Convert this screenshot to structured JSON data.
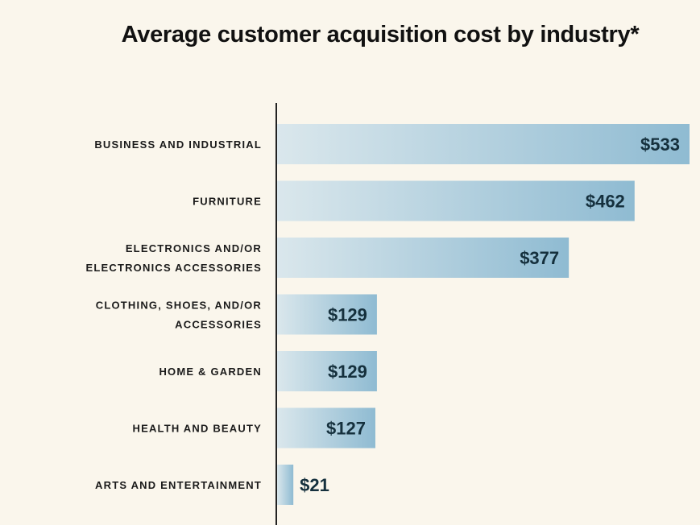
{
  "chart_data": {
    "type": "bar",
    "orientation": "horizontal",
    "title": "Average customer acquisition cost by industry*",
    "categories": [
      [
        "BUSINESS AND INDUSTRIAL"
      ],
      [
        "FURNITURE"
      ],
      [
        "ELECTRONICS AND/OR",
        "ELECTRONICS ACCESSORIES"
      ],
      [
        "CLOTHING, SHOES, AND/OR",
        "ACCESSORIES"
      ],
      [
        "HOME & GARDEN"
      ],
      [
        "HEALTH AND BEAUTY"
      ],
      [
        "ARTS AND ENTERTAINMENT"
      ]
    ],
    "values": [
      533,
      462,
      377,
      129,
      129,
      127,
      21
    ],
    "value_labels": [
      "$533",
      "$462",
      "$377",
      "$129",
      "$129",
      "$127",
      "$21"
    ],
    "xlim": [
      0,
      533
    ],
    "grid": false,
    "bar_gradient": [
      "#dae7ec",
      "#8fbbd2"
    ]
  }
}
